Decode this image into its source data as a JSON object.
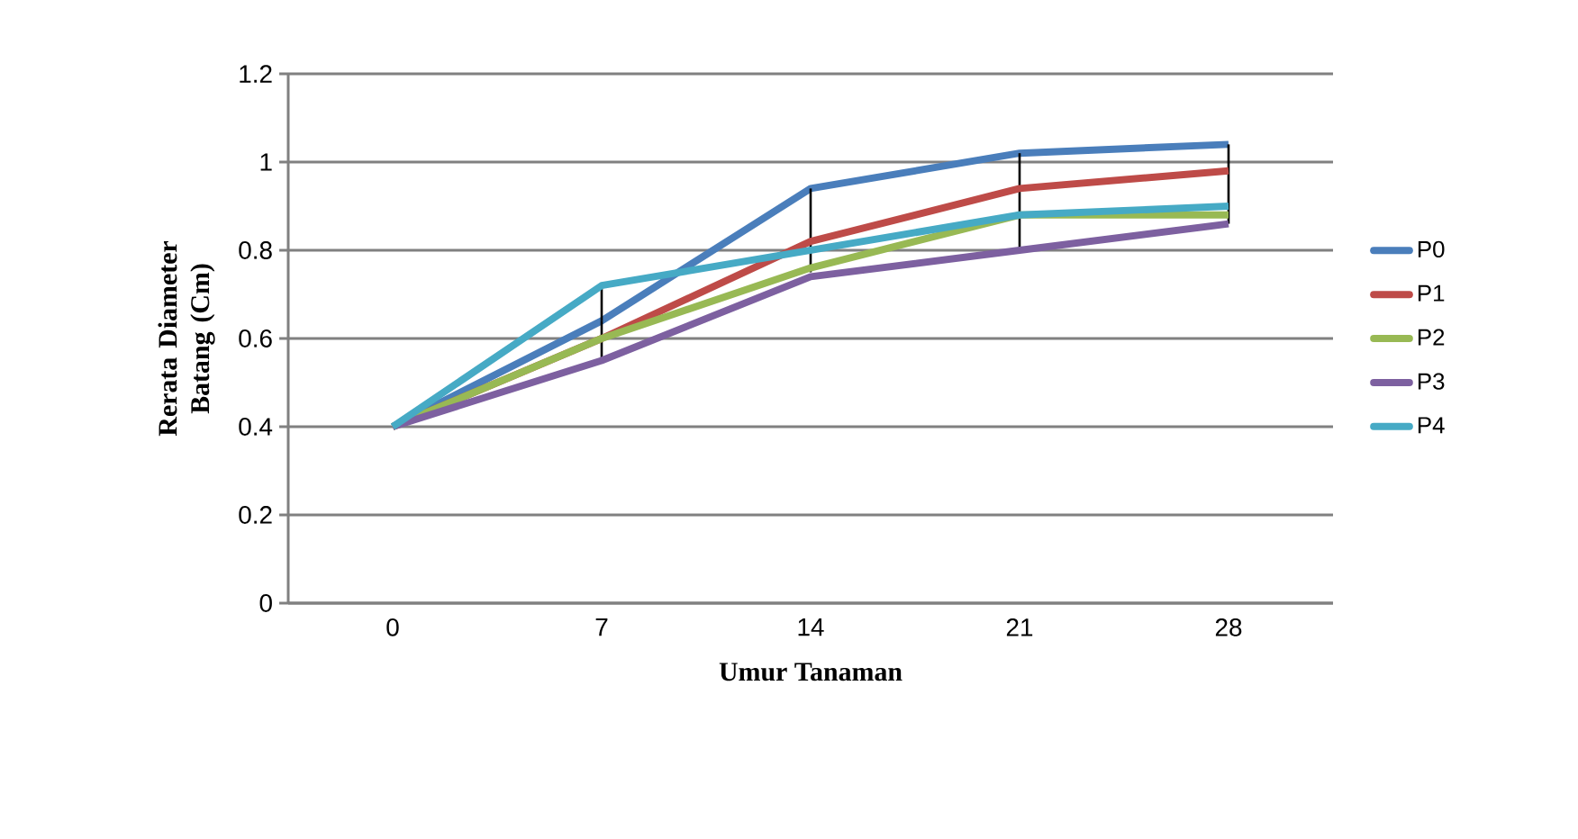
{
  "chart_data": {
    "type": "line",
    "xlabel": "Umur Tanaman",
    "ylabel": "Rerata Diameter Batang (Cm)",
    "categories": [
      "0",
      "7",
      "14",
      "21",
      "28"
    ],
    "series": [
      {
        "name": "P0",
        "color": "#4a7ebb",
        "values": [
          0.4,
          0.64,
          0.94,
          1.02,
          1.04
        ],
        "errors": [
          null,
          [
            0.55,
            0.72
          ],
          [
            0.75,
            0.94
          ],
          [
            0.8,
            1.02
          ],
          [
            0.86,
            1.04
          ]
        ]
      },
      {
        "name": "P1",
        "color": "#be4b48",
        "values": [
          0.4,
          0.6,
          0.82,
          0.94,
          0.98
        ]
      },
      {
        "name": "P2",
        "color": "#98b954",
        "values": [
          0.4,
          0.6,
          0.76,
          0.88,
          0.88
        ]
      },
      {
        "name": "P3",
        "color": "#7d60a0",
        "values": [
          0.4,
          0.55,
          0.74,
          0.8,
          0.86
        ]
      },
      {
        "name": "P4",
        "color": "#46aac5",
        "values": [
          0.4,
          0.72,
          0.8,
          0.88,
          0.9
        ]
      }
    ],
    "ylim": [
      0,
      1.2
    ],
    "yticks": [
      0,
      0.2,
      0.4,
      0.6,
      0.8,
      1,
      1.2
    ],
    "grid": "y",
    "legend": "right",
    "marker": "none",
    "line_style": "solid"
  }
}
